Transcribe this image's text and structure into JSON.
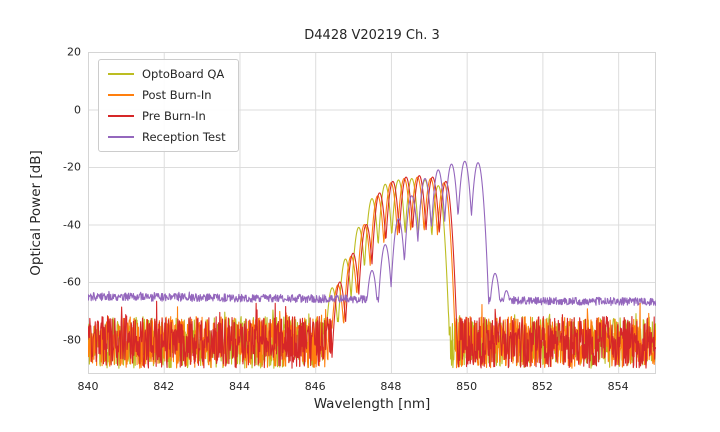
{
  "chart_data": {
    "type": "line",
    "title": "D4428 V20219 Ch. 3",
    "xlabel": "Wavelength [nm]",
    "ylabel": "Optical Power [dB]",
    "xlim": [
      840,
      855
    ],
    "ylim": [
      -92,
      20
    ],
    "xticks": [
      840,
      842,
      844,
      846,
      848,
      850,
      852,
      854
    ],
    "yticks": [
      20,
      0,
      -20,
      -40,
      -60,
      -80
    ],
    "grid": true,
    "grid_color": "#dddddd",
    "border_color": "#d5d5d5",
    "background": "#ffffff",
    "legend_position": "upper left",
    "series": [
      {
        "name": "OptoBoard QA",
        "color": "#bcbd22",
        "seed": 11,
        "noise_floor": -81,
        "noise_amplitude": 9,
        "noise_slope": 0,
        "mode_halfwidth": 0.18,
        "valley_depth": 20,
        "modes": [
          [
            846.45,
            -62
          ],
          [
            846.8,
            -52
          ],
          [
            847.15,
            -41
          ],
          [
            847.5,
            -31
          ],
          [
            847.85,
            -26
          ],
          [
            848.2,
            -24.5
          ],
          [
            848.55,
            -24
          ],
          [
            848.9,
            -24.5
          ],
          [
            849.25,
            -26.5
          ]
        ]
      },
      {
        "name": "Post Burn-In",
        "color": "#ff7f0e",
        "seed": 22,
        "noise_floor": -81,
        "noise_amplitude": 9,
        "noise_slope": 0,
        "mode_halfwidth": 0.18,
        "valley_depth": 20,
        "modes": [
          [
            846.6,
            -61
          ],
          [
            846.95,
            -51
          ],
          [
            847.3,
            -40
          ],
          [
            847.65,
            -30
          ],
          [
            848.0,
            -25.5
          ],
          [
            848.35,
            -24
          ],
          [
            848.7,
            -23.5
          ],
          [
            849.05,
            -24
          ],
          [
            849.4,
            -25.5
          ]
        ]
      },
      {
        "name": "Pre Burn-In",
        "color": "#d62728",
        "seed": 33,
        "noise_floor": -81,
        "noise_amplitude": 9,
        "noise_slope": 0,
        "mode_halfwidth": 0.18,
        "valley_depth": 20,
        "modes": [
          [
            846.65,
            -60
          ],
          [
            847.0,
            -50
          ],
          [
            847.35,
            -40
          ],
          [
            847.7,
            -29
          ],
          [
            848.05,
            -25
          ],
          [
            848.4,
            -23.5
          ],
          [
            848.75,
            -23
          ],
          [
            849.1,
            -23.5
          ],
          [
            849.45,
            -25
          ]
        ]
      },
      {
        "name": "Reception Test",
        "color": "#9467bd",
        "seed": 44,
        "noise_floor": -66,
        "noise_amplitude": 1.4,
        "noise_slope": -0.12,
        "mode_halfwidth": 0.18,
        "valley_depth": 20,
        "modes": [
          [
            847.5,
            -56
          ],
          [
            847.85,
            -47
          ],
          [
            848.2,
            -38
          ],
          [
            848.55,
            -30
          ],
          [
            848.9,
            -24
          ],
          [
            849.25,
            -21
          ],
          [
            849.6,
            -19
          ],
          [
            849.95,
            -18
          ],
          [
            850.3,
            -18.5
          ],
          [
            850.75,
            -57
          ],
          [
            851.05,
            -63
          ]
        ]
      }
    ]
  }
}
